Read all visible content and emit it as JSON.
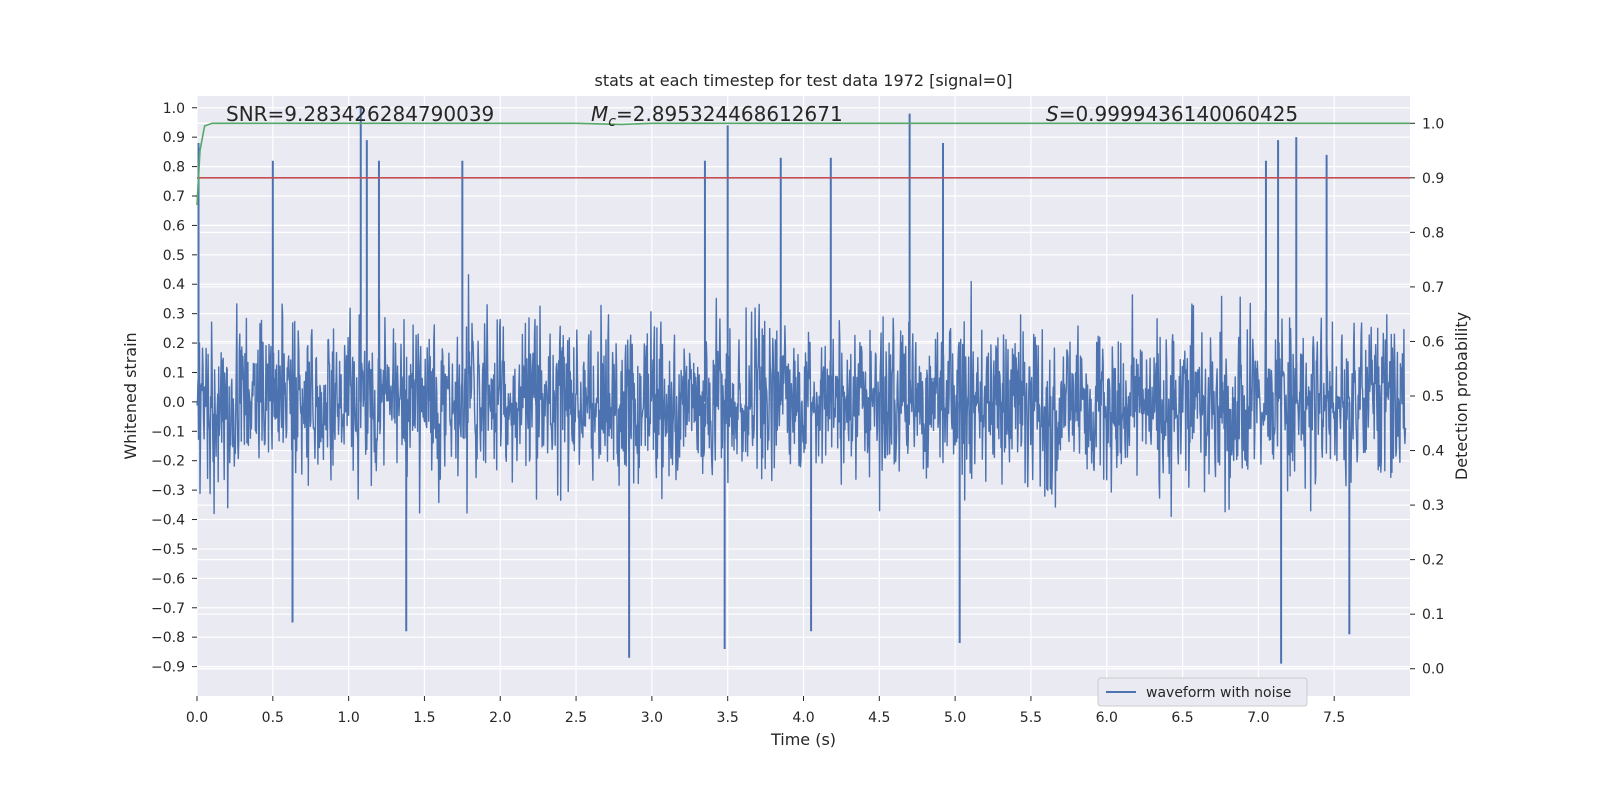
{
  "chart_data": {
    "type": "line",
    "title": "stats at each timestep for test data 1972 [signal=0]",
    "xlabel": "Time (s)",
    "ylabel": "Whitened strain",
    "y2label": "Detection probability",
    "xlim": [
      0.0,
      8.0
    ],
    "ylim": [
      -1.0,
      1.04
    ],
    "y2lim": [
      -0.05,
      1.05
    ],
    "xticks": [
      "0.0",
      "0.5",
      "1.0",
      "1.5",
      "2.0",
      "2.5",
      "3.0",
      "3.5",
      "4.0",
      "4.5",
      "5.0",
      "5.5",
      "6.0",
      "6.5",
      "7.0",
      "7.5"
    ],
    "yticks": [
      "−0.9",
      "−0.8",
      "−0.7",
      "−0.6",
      "−0.5",
      "−0.4",
      "−0.3",
      "−0.2",
      "−0.1",
      "0.0",
      "0.1",
      "0.2",
      "0.3",
      "0.4",
      "0.5",
      "0.6",
      "0.7",
      "0.8",
      "0.9",
      "1.0"
    ],
    "y2ticks": [
      "0.0",
      "0.1",
      "0.2",
      "0.3",
      "0.4",
      "0.5",
      "0.6",
      "0.7",
      "0.8",
      "0.9",
      "1.0"
    ],
    "grid": true,
    "legend_position": "lower-right",
    "annotations": {
      "snr": "SNR=9.283426284790039",
      "mc_symbol": "M",
      "mc_sub": "c",
      "mc_value": "=2.895324468612671",
      "s_symbol": "S",
      "s_value": "=0.9999436140060425"
    },
    "series": [
      {
        "name": "waveform with noise",
        "axis": "left",
        "color": "#4c72b0",
        "description_note": "dense noise trace",
        "peaks": [
          {
            "x": 0.01,
            "y": 0.88
          },
          {
            "x": 0.5,
            "y": 0.82
          },
          {
            "x": 1.08,
            "y": 1.0
          },
          {
            "x": 1.12,
            "y": 0.89
          },
          {
            "x": 1.2,
            "y": 0.82
          },
          {
            "x": 1.75,
            "y": 0.82
          },
          {
            "x": 3.5,
            "y": 0.94
          },
          {
            "x": 3.35,
            "y": 0.82
          },
          {
            "x": 3.85,
            "y": 0.83
          },
          {
            "x": 4.18,
            "y": 0.83
          },
          {
            "x": 4.7,
            "y": 0.98
          },
          {
            "x": 4.92,
            "y": 0.88
          },
          {
            "x": 7.05,
            "y": 0.82
          },
          {
            "x": 7.13,
            "y": 0.89
          },
          {
            "x": 7.25,
            "y": 0.9
          },
          {
            "x": 7.45,
            "y": 0.84
          }
        ],
        "troughs": [
          {
            "x": 2.85,
            "y": -0.87
          },
          {
            "x": 3.48,
            "y": -0.84
          },
          {
            "x": 5.03,
            "y": -0.82
          },
          {
            "x": 7.15,
            "y": -0.89
          },
          {
            "x": 1.38,
            "y": -0.78
          },
          {
            "x": 4.05,
            "y": -0.78
          },
          {
            "x": 0.63,
            "y": -0.75
          },
          {
            "x": 7.6,
            "y": -0.79
          }
        ]
      },
      {
        "name": "",
        "axis": "right",
        "color": "#55a868",
        "x": [
          0.0,
          0.02,
          0.05,
          0.1,
          0.2,
          1.0,
          2.0,
          2.5,
          2.8,
          3.0,
          4.0,
          5.0,
          6.0,
          7.0,
          8.0
        ],
        "values": [
          0.85,
          0.95,
          0.995,
          1.0,
          1.0,
          1.0,
          1.0,
          1.0,
          0.998,
          1.0,
          1.0,
          1.0,
          1.0,
          1.0,
          1.0
        ]
      }
    ],
    "threshold_line": {
      "value": 0.9,
      "axis": "right",
      "color": "#c44e52"
    },
    "colors": {
      "background": "#eaeaf2",
      "grid": "#ffffff",
      "waveform": "#4c72b0",
      "probability": "#55a868",
      "threshold": "#c44e52"
    }
  }
}
